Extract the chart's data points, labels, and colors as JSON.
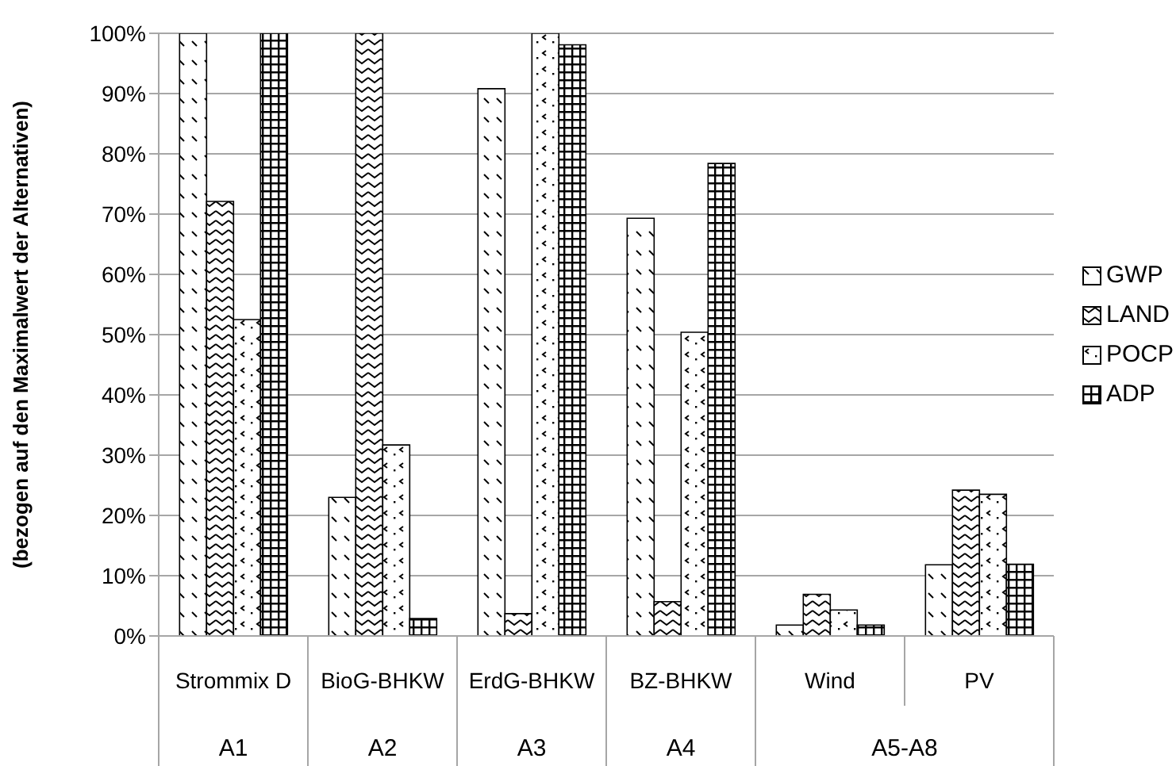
{
  "chart_data": {
    "type": "bar",
    "ylabel": "(bezogen auf den Maximalwert der Alternativen)",
    "categories": [
      "Strommix D",
      "BioG-BHKW",
      "ErdG-BHKW",
      "BZ-BHKW",
      "Wind",
      "PV"
    ],
    "series": [
      {
        "name": "GWP",
        "color": "#000000",
        "values": [
          100,
          23,
          90.8,
          69.3,
          1.8,
          11.8
        ]
      },
      {
        "name": "LAND",
        "color": "#000000",
        "values": [
          72.1,
          100,
          3.7,
          5.7,
          6.9,
          24.2
        ]
      },
      {
        "name": "POCP",
        "color": "#000000",
        "values": [
          52.5,
          31.7,
          100,
          50.4,
          4.3,
          23.5
        ]
      },
      {
        "name": "ADP",
        "color": "#000000",
        "values": [
          100,
          2.9,
          98.1,
          78.4,
          1.8,
          11.9
        ]
      }
    ],
    "ylim": [
      0,
      100
    ],
    "yticks": [
      {
        "value": 0,
        "label": "0%"
      },
      {
        "value": 10,
        "label": "10%"
      },
      {
        "value": 20,
        "label": "20%"
      },
      {
        "value": 30,
        "label": "30%"
      },
      {
        "value": 40,
        "label": "40%"
      },
      {
        "value": 50,
        "label": "50%"
      },
      {
        "value": 60,
        "label": "60%"
      },
      {
        "value": 70,
        "label": "70%"
      },
      {
        "value": 80,
        "label": "80%"
      },
      {
        "value": 90,
        "label": "90%"
      },
      {
        "value": 100,
        "label": "100%"
      }
    ],
    "annotations": [
      "A1",
      "A2",
      "A3",
      "A4",
      "A5-A8"
    ],
    "grid": "y",
    "legend": "right"
  }
}
